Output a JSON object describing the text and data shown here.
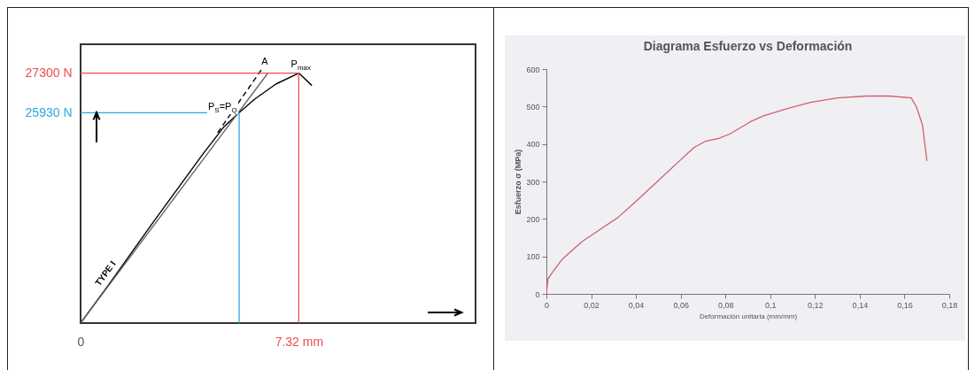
{
  "chart_data": [
    {
      "type": "line",
      "xlim": [
        0,
        13.25
      ],
      "ylim": [
        18640,
        28300
      ],
      "xticks": [
        0,
        {
          "value": 7.32,
          "label": "7.32 mm"
        }
      ],
      "yticks": [
        {
          "value": 25930,
          "label": "25930 N"
        },
        {
          "value": 27300,
          "label": "27300 N"
        }
      ],
      "grid": false,
      "series": [
        {
          "color": "#000000",
          "x": [
            0,
            0.9,
            2.44,
            4.09,
            4.8,
            5.32,
            5.83,
            6.55,
            7.32,
            7.76
          ],
          "values": [
            18640,
            19910,
            22140,
            24480,
            25430,
            25930,
            26390,
            26920,
            27300,
            26870
          ]
        },
        {
          "color": "#000000",
          "line_style": "dashed",
          "x": [
            4.6,
            6.12
          ],
          "values": [
            25240,
            27500
          ]
        },
        {
          "color": "#666666",
          "x": [
            0,
            6.29
          ],
          "values": [
            18640,
            27310
          ]
        }
      ],
      "ref_lines": [
        {
          "axis": "y",
          "value": 27300,
          "color": "#ee4b4f"
        },
        {
          "axis": "y",
          "value": 25930,
          "color": "#2aa8e0"
        },
        {
          "axis": "x",
          "value": 7.32,
          "color": "#ee4b4f"
        },
        {
          "axis": "x",
          "value": 5.32,
          "color": "#2aa8e0"
        }
      ],
      "annotations": [
        {
          "text": "A",
          "x": 6.12,
          "y": 27500
        },
        {
          "text": "P$_{max}$",
          "x": 7.32,
          "y": 27300
        },
        {
          "text": "P$_{S}$=P$_{Q}$",
          "x": 5.32,
          "y": 25930
        },
        {
          "text": "TYPE I",
          "x": 1.16,
          "y": 20290
        }
      ]
    },
    {
      "type": "line",
      "title": "Diagrama Esfuerzo vs Deformación",
      "xlabel": "Deformación unitaria  (mm/mm)",
      "ylabel": "Esfuerzo σ (MPa)",
      "xlim": [
        0,
        0.18
      ],
      "ylim": [
        0,
        600
      ],
      "xticks": [
        0,
        {
          "value": 0.02,
          "label": "0,02"
        },
        {
          "value": 0.04,
          "label": "0,04"
        },
        {
          "value": 0.06,
          "label": "0,06"
        },
        {
          "value": 0.08,
          "label": "0,08"
        },
        {
          "value": 0.1,
          "label": "0,1"
        },
        {
          "value": 0.12,
          "label": "0,12"
        },
        {
          "value": 0.14,
          "label": "0,14"
        },
        {
          "value": 0.16,
          "label": "0,16"
        },
        {
          "value": 0.18,
          "label": "0,18"
        }
      ],
      "yticks": [
        0,
        100,
        200,
        300,
        400,
        500,
        600
      ],
      "grid": false,
      "series": [
        {
          "color": "#d0606a",
          "x": [
            0,
            0.0007,
            0.003,
            0.007,
            0.016,
            0.024,
            0.032,
            0.04,
            0.048,
            0.058,
            0.066,
            0.071,
            0.077,
            0.082,
            0.091,
            0.097,
            0.108,
            0.118,
            0.13,
            0.143,
            0.153,
            0.163,
            0.1653,
            0.168,
            0.17
          ],
          "values": [
            0,
            40,
            60,
            92,
            140,
            172,
            204,
            247,
            291,
            347,
            391,
            407,
            415,
            427,
            459,
            475,
            495,
            511,
            523,
            528,
            528,
            523,
            499,
            451,
            355
          ]
        }
      ]
    }
  ]
}
